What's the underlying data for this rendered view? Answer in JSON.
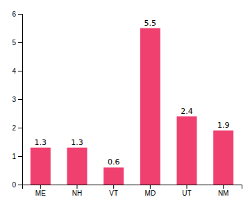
{
  "chart_data": {
    "type": "bar",
    "categories": [
      "ME",
      "NH",
      "VT",
      "MD",
      "UT",
      "NM"
    ],
    "values": [
      1.3,
      1.3,
      0.6,
      5.5,
      2.4,
      1.9
    ],
    "color": "#f04070",
    "ylim": [
      0,
      6
    ],
    "yticks": [
      0,
      1,
      2,
      3,
      4,
      5,
      6
    ],
    "grid": false,
    "data_labels": true
  }
}
